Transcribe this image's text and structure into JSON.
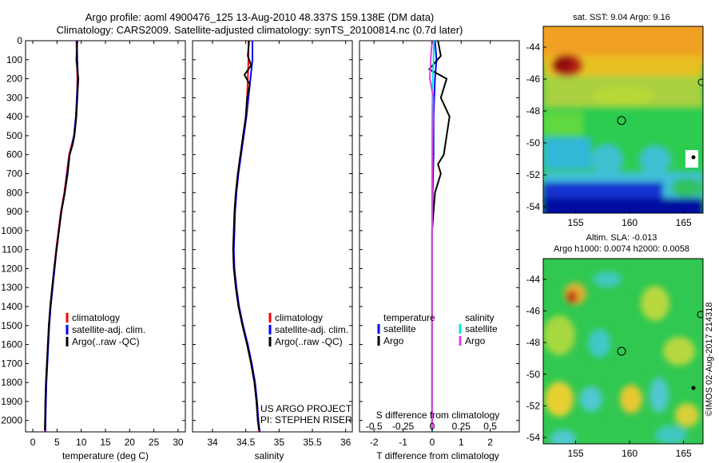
{
  "header": {
    "line1": "Argo profile: aoml 4900476_125 13-Aug-2010 48.337S 159.138E (DM data)",
    "line2": "Climatology: CARS2009. Satellite-adjusted climatology: synTS_20100814.nc (0.7d later)"
  },
  "colors": {
    "climatology": "#ff0000",
    "satellite": "#0000ff",
    "argo": "#000000",
    "sal_satellite": "#00e5e5",
    "sal_argo": "#e040e0"
  },
  "depth_ticks": [
    "0",
    "100",
    "200",
    "300",
    "400",
    "500",
    "600",
    "700",
    "800",
    "900",
    "1000",
    "1100",
    "1200",
    "1300",
    "1400",
    "1500",
    "1600",
    "1700",
    "1800",
    "1900",
    "2000"
  ],
  "depth_range": [
    0,
    2060
  ],
  "temperature_panel": {
    "xlabel": "temperature (deg C)",
    "xlim": [
      -1.5,
      31.5
    ],
    "xticks": [
      "0",
      "5",
      "10",
      "15",
      "20",
      "25",
      "30"
    ],
    "legend": [
      "climatology",
      "satellite-adj. clim.",
      "Argo(..raw -QC)"
    ]
  },
  "salinity_panel": {
    "xlabel": "salinity",
    "xlim": [
      33.7,
      36.1
    ],
    "xticks": [
      "34",
      "34.5",
      "35",
      "35.5",
      "36"
    ],
    "legend": [
      "climatology",
      "satellite-adj. clim.",
      "Argo(..raw -QC)"
    ],
    "annotation_1": "US ARGO PROJECT",
    "annotation_2": "PI: STEPHEN RISER"
  },
  "difference_panel": {
    "xlabel": "T difference from climatology",
    "xlim": [
      -2.5,
      3.0
    ],
    "xticks": [
      "-2",
      "-1",
      "0",
      "1",
      "2"
    ],
    "top_label": "S difference from climatology",
    "top_ticks": [
      "-0.5",
      "-0.25",
      "0",
      "0.25",
      "0.5"
    ],
    "legend_temp_title": "temperature",
    "legend_sal_title": "salinity",
    "legend_satellite": "satellite",
    "legend_argo": "Argo"
  },
  "map_sst": {
    "title": "sat. SST: 9.04  Argo: 9.16",
    "xticks": [
      "155",
      "160",
      "165"
    ],
    "yticks": [
      "-44",
      "-46",
      "-48",
      "-50",
      "-52",
      "-54"
    ]
  },
  "map_sla": {
    "title_1": "Altim. SLA: -0.013",
    "title_2": "Argo h1000: 0.0074  h2000: 0.0058",
    "xticks": [
      "155",
      "160",
      "165"
    ],
    "yticks": [
      "-44",
      "-46",
      "-48",
      "-50",
      "-52",
      "-54"
    ]
  },
  "credit": "©IMOS 02-Aug-2017 214318",
  "chart_data": [
    {
      "type": "line",
      "title": "",
      "xlabel": "temperature (deg C)",
      "ylabel": "",
      "xlim": [
        -1.5,
        31.5
      ],
      "ylim": [
        2060,
        0
      ],
      "series": [
        {
          "name": "climatology",
          "x": [
            9.0,
            9.1,
            9.2,
            9.1,
            8.9,
            8.5,
            8.0,
            7.5,
            7.0,
            6.5,
            5.8,
            5.3,
            4.8,
            4.4,
            4.0,
            3.6,
            3.3,
            3.1,
            2.9,
            2.7,
            2.6,
            2.5
          ],
          "y": [
            0,
            100,
            200,
            300,
            400,
            500,
            550,
            600,
            700,
            800,
            900,
            1000,
            1100,
            1200,
            1300,
            1400,
            1500,
            1600,
            1700,
            1800,
            1900,
            2060
          ]
        },
        {
          "name": "satellite-adj. clim.",
          "x": [
            9.1,
            9.2,
            9.3,
            9.1,
            8.9,
            8.5,
            8.1,
            7.6,
            7.1,
            6.6,
            5.9,
            5.4,
            4.9,
            4.5,
            4.1,
            3.7,
            3.4,
            3.2,
            3.0,
            2.8,
            2.7,
            2.6
          ],
          "y": [
            0,
            100,
            200,
            300,
            400,
            500,
            550,
            600,
            700,
            800,
            900,
            1000,
            1100,
            1200,
            1300,
            1400,
            1500,
            1600,
            1700,
            1800,
            1900,
            2060
          ]
        },
        {
          "name": "Argo(..raw -QC)",
          "x": [
            9.2,
            9.0,
            9.4,
            9.2,
            9.0,
            8.6,
            8.2,
            7.6,
            7.2,
            6.6,
            5.9,
            5.4,
            4.9,
            4.4,
            4.0,
            3.6,
            3.3,
            3.1,
            2.9,
            2.7,
            2.6,
            2.5
          ],
          "y": [
            0,
            100,
            200,
            300,
            400,
            500,
            550,
            600,
            700,
            800,
            900,
            1000,
            1100,
            1200,
            1300,
            1400,
            1500,
            1600,
            1700,
            1800,
            1900,
            2050
          ]
        }
      ]
    },
    {
      "type": "line",
      "title": "",
      "xlabel": "salinity",
      "ylabel": "",
      "xlim": [
        33.7,
        36.1
      ],
      "ylim": [
        2060,
        0
      ],
      "series": [
        {
          "name": "climatology",
          "x": [
            34.54,
            34.54,
            34.53,
            34.52,
            34.5,
            34.46,
            34.42,
            34.38,
            34.35,
            34.33,
            34.32,
            34.31,
            34.32,
            34.35,
            34.39,
            34.45,
            34.52,
            34.58,
            34.63,
            34.66,
            34.68,
            34.7
          ],
          "y": [
            0,
            100,
            200,
            300,
            400,
            500,
            600,
            700,
            800,
            900,
            1000,
            1100,
            1200,
            1300,
            1400,
            1500,
            1600,
            1700,
            1800,
            1900,
            2000,
            2060
          ]
        },
        {
          "name": "satellite-adj. clim.",
          "x": [
            34.6,
            34.6,
            34.57,
            34.54,
            34.51,
            34.47,
            34.43,
            34.39,
            34.36,
            34.34,
            34.33,
            34.32,
            34.33,
            34.36,
            34.4,
            34.46,
            34.53,
            34.59,
            34.64,
            34.67,
            34.69,
            34.71
          ],
          "y": [
            0,
            100,
            200,
            300,
            400,
            500,
            600,
            700,
            800,
            900,
            1000,
            1100,
            1200,
            1300,
            1400,
            1500,
            1600,
            1700,
            1800,
            1900,
            2000,
            2060
          ]
        },
        {
          "name": "Argo(..raw -QC)",
          "x": [
            34.55,
            34.53,
            34.58,
            34.48,
            34.56,
            34.52,
            34.5,
            34.46,
            34.42,
            34.38,
            34.35,
            34.33,
            34.32,
            34.31,
            34.32,
            34.35,
            34.39,
            34.45,
            34.52,
            34.58,
            34.63,
            34.66,
            34.68,
            34.7
          ],
          "y": [
            0,
            80,
            130,
            180,
            230,
            300,
            400,
            500,
            600,
            700,
            800,
            900,
            1000,
            1100,
            1200,
            1300,
            1400,
            1500,
            1600,
            1700,
            1800,
            1900,
            2000,
            2050
          ]
        }
      ]
    },
    {
      "type": "line",
      "title": "",
      "xlabel": "T difference from climatology",
      "ylabel": "",
      "xlim": [
        -2.5,
        3.0
      ],
      "ylim": [
        2060,
        0
      ],
      "series": [
        {
          "name": "temperature satellite",
          "x": [
            0.1,
            0.15,
            0.1,
            0.05,
            0.05,
            0.02,
            0.0,
            0.0,
            0.0
          ],
          "y": [
            0,
            100,
            200,
            400,
            600,
            800,
            1000,
            1500,
            2060
          ]
        },
        {
          "name": "temperature Argo",
          "x": [
            0.2,
            0.3,
            -0.1,
            0.5,
            0.3,
            0.6,
            0.5,
            0.4,
            0.2,
            0.3,
            0.1,
            0.0,
            0.0,
            0.0
          ],
          "y": [
            0,
            80,
            150,
            200,
            300,
            400,
            500,
            600,
            650,
            700,
            800,
            1000,
            1500,
            2050
          ]
        },
        {
          "name": "salinity satellite",
          "x": [
            0.06,
            0.05,
            0.02,
            0.0,
            0.0,
            0.0,
            0.0
          ],
          "y": [
            0,
            100,
            200,
            400,
            700,
            1200,
            2060
          ]
        },
        {
          "name": "salinity Argo",
          "x": [
            0.0,
            -0.04,
            -0.08,
            0.04,
            0.02,
            0.0,
            0.0,
            0.0
          ],
          "y": [
            0,
            80,
            200,
            300,
            500,
            800,
            1500,
            2050
          ]
        }
      ]
    }
  ]
}
